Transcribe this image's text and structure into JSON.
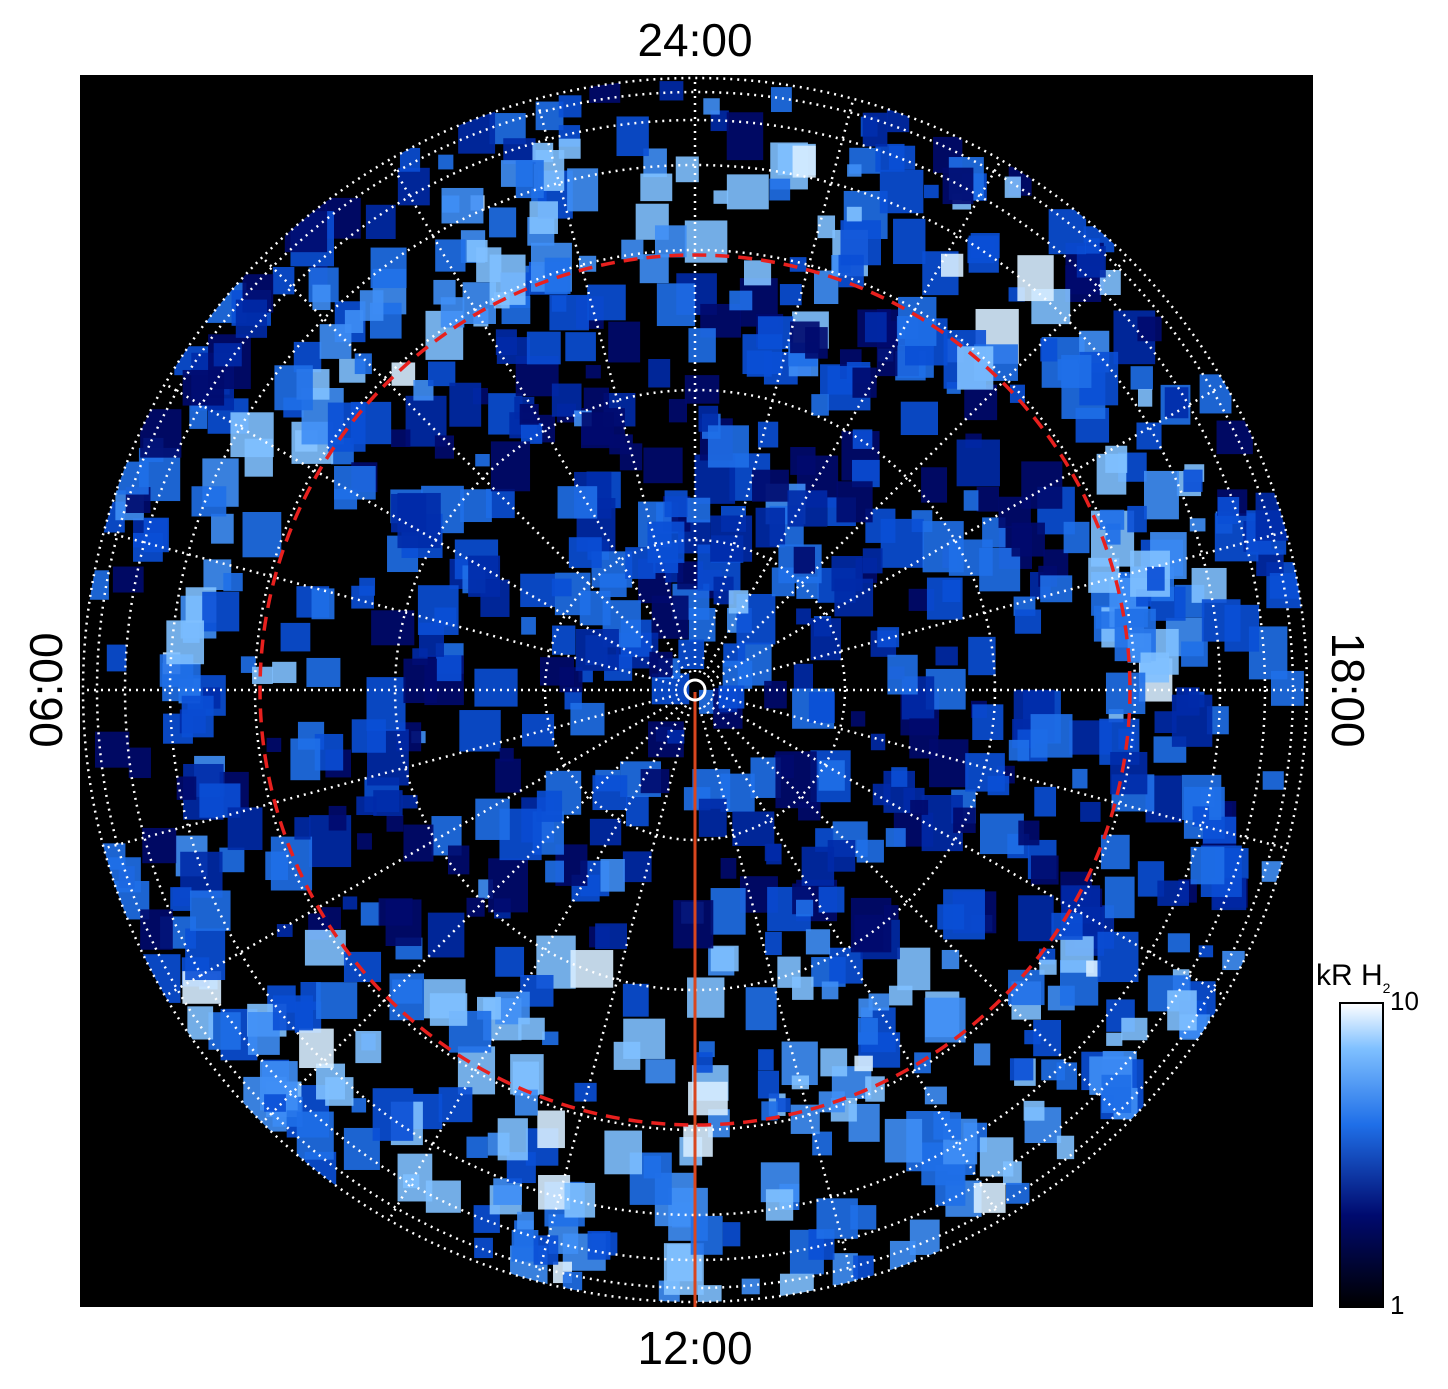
{
  "chart_data": {
    "type": "polar-image",
    "local_time_labels": {
      "top": "24:00",
      "bottom": "12:00",
      "left": "06:00",
      "right": "18:00"
    },
    "colorbar": {
      "label": "kR H",
      "label_subscript": "2",
      "range": [
        1,
        10
      ],
      "ticks": [
        1,
        10
      ],
      "log_scale": true
    }
  }
}
